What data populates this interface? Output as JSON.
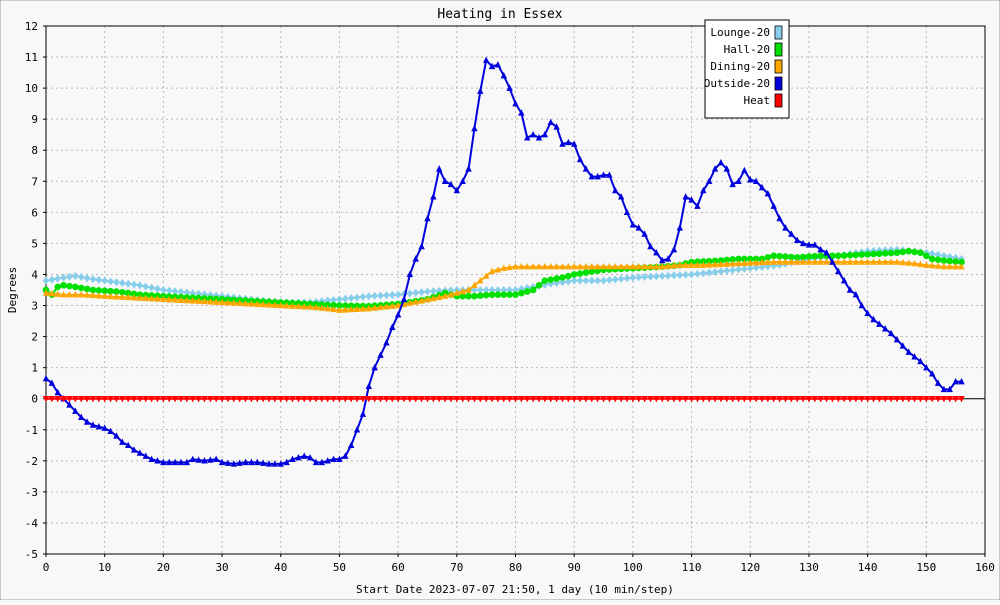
{
  "chart_data": {
    "type": "line",
    "title": "Heating in Essex",
    "xlabel": "Start Date 2023-07-07 21:50, 1 day (10 min/step)",
    "ylabel": "Degrees",
    "xlim": [
      0,
      160
    ],
    "ylim": [
      -5,
      12
    ],
    "xticks": [
      0,
      10,
      20,
      30,
      40,
      50,
      60,
      70,
      80,
      90,
      100,
      110,
      120,
      130,
      140,
      150,
      160
    ],
    "yticks": [
      -5,
      -4,
      -3,
      -2,
      -1,
      0,
      1,
      2,
      3,
      4,
      5,
      6,
      7,
      8,
      9,
      10,
      11,
      12
    ],
    "grid": true,
    "legend_position": "top-right",
    "series": [
      {
        "name": "Lounge-20",
        "color": "#87ceeb",
        "marker": "diamond",
        "points": [
          [
            0,
            3.8
          ],
          [
            3,
            3.9
          ],
          [
            5,
            3.95
          ],
          [
            8,
            3.85
          ],
          [
            12,
            3.75
          ],
          [
            16,
            3.65
          ],
          [
            20,
            3.5
          ],
          [
            25,
            3.4
          ],
          [
            30,
            3.3
          ],
          [
            35,
            3.2
          ],
          [
            40,
            3.1
          ],
          [
            45,
            3.1
          ],
          [
            50,
            3.2
          ],
          [
            55,
            3.3
          ],
          [
            60,
            3.35
          ],
          [
            65,
            3.45
          ],
          [
            70,
            3.5
          ],
          [
            75,
            3.5
          ],
          [
            80,
            3.5
          ],
          [
            83,
            3.6
          ],
          [
            86,
            3.7
          ],
          [
            90,
            3.8
          ],
          [
            95,
            3.8
          ],
          [
            100,
            3.9
          ],
          [
            105,
            3.95
          ],
          [
            110,
            4.0
          ],
          [
            115,
            4.1
          ],
          [
            120,
            4.2
          ],
          [
            125,
            4.3
          ],
          [
            130,
            4.5
          ],
          [
            135,
            4.6
          ],
          [
            140,
            4.75
          ],
          [
            145,
            4.8
          ],
          [
            150,
            4.7
          ],
          [
            153,
            4.6
          ],
          [
            156,
            4.5
          ]
        ]
      },
      {
        "name": "Hall-20",
        "color": "#00e000",
        "marker": "circle",
        "points": [
          [
            0,
            3.5
          ],
          [
            1,
            3.35
          ],
          [
            2,
            3.6
          ],
          [
            3,
            3.65
          ],
          [
            5,
            3.6
          ],
          [
            8,
            3.5
          ],
          [
            12,
            3.45
          ],
          [
            16,
            3.35
          ],
          [
            20,
            3.3
          ],
          [
            25,
            3.25
          ],
          [
            30,
            3.2
          ],
          [
            35,
            3.15
          ],
          [
            40,
            3.1
          ],
          [
            45,
            3.05
          ],
          [
            50,
            3.0
          ],
          [
            55,
            2.98
          ],
          [
            60,
            3.05
          ],
          [
            65,
            3.2
          ],
          [
            68,
            3.4
          ],
          [
            70,
            3.3
          ],
          [
            73,
            3.3
          ],
          [
            76,
            3.35
          ],
          [
            80,
            3.35
          ],
          [
            83,
            3.5
          ],
          [
            85,
            3.8
          ],
          [
            88,
            3.9
          ],
          [
            90,
            4.0
          ],
          [
            95,
            4.15
          ],
          [
            100,
            4.2
          ],
          [
            105,
            4.25
          ],
          [
            108,
            4.3
          ],
          [
            110,
            4.4
          ],
          [
            115,
            4.45
          ],
          [
            118,
            4.5
          ],
          [
            122,
            4.5
          ],
          [
            124,
            4.6
          ],
          [
            128,
            4.55
          ],
          [
            132,
            4.6
          ],
          [
            135,
            4.6
          ],
          [
            140,
            4.65
          ],
          [
            145,
            4.7
          ],
          [
            147,
            4.75
          ],
          [
            149,
            4.7
          ],
          [
            151,
            4.5
          ],
          [
            153,
            4.45
          ],
          [
            156,
            4.4
          ]
        ]
      },
      {
        "name": "Dining-20",
        "color": "#ffa500",
        "marker": "triangle",
        "points": [
          [
            0,
            3.4
          ],
          [
            3,
            3.35
          ],
          [
            6,
            3.35
          ],
          [
            10,
            3.3
          ],
          [
            15,
            3.25
          ],
          [
            20,
            3.2
          ],
          [
            25,
            3.15
          ],
          [
            30,
            3.1
          ],
          [
            35,
            3.05
          ],
          [
            40,
            3.0
          ],
          [
            45,
            2.95
          ],
          [
            48,
            2.9
          ],
          [
            50,
            2.85
          ],
          [
            55,
            2.9
          ],
          [
            60,
            3.0
          ],
          [
            64,
            3.15
          ],
          [
            68,
            3.3
          ],
          [
            72,
            3.5
          ],
          [
            74,
            3.8
          ],
          [
            76,
            4.1
          ],
          [
            78,
            4.2
          ],
          [
            80,
            4.25
          ],
          [
            85,
            4.25
          ],
          [
            90,
            4.25
          ],
          [
            95,
            4.25
          ],
          [
            100,
            4.25
          ],
          [
            105,
            4.25
          ],
          [
            108,
            4.3
          ],
          [
            112,
            4.3
          ],
          [
            118,
            4.35
          ],
          [
            124,
            4.4
          ],
          [
            130,
            4.4
          ],
          [
            135,
            4.4
          ],
          [
            140,
            4.4
          ],
          [
            145,
            4.4
          ],
          [
            148,
            4.35
          ],
          [
            150,
            4.3
          ],
          [
            153,
            4.25
          ],
          [
            156,
            4.25
          ]
        ]
      },
      {
        "name": "Outside-20",
        "color": "#0000dd",
        "marker": "triangle",
        "points": [
          [
            0,
            0.65
          ],
          [
            1,
            0.5
          ],
          [
            2,
            0.2
          ],
          [
            3,
            0.0
          ],
          [
            4,
            -0.2
          ],
          [
            5,
            -0.4
          ],
          [
            6,
            -0.6
          ],
          [
            7,
            -0.75
          ],
          [
            8,
            -0.85
          ],
          [
            9,
            -0.9
          ],
          [
            10,
            -0.95
          ],
          [
            11,
            -1.05
          ],
          [
            12,
            -1.2
          ],
          [
            13,
            -1.4
          ],
          [
            14,
            -1.5
          ],
          [
            15,
            -1.65
          ],
          [
            16,
            -1.75
          ],
          [
            17,
            -1.85
          ],
          [
            18,
            -1.95
          ],
          [
            19,
            -2.0
          ],
          [
            20,
            -2.05
          ],
          [
            22,
            -2.05
          ],
          [
            24,
            -2.05
          ],
          [
            25,
            -1.95
          ],
          [
            27,
            -2.0
          ],
          [
            29,
            -1.95
          ],
          [
            30,
            -2.05
          ],
          [
            32,
            -2.1
          ],
          [
            34,
            -2.05
          ],
          [
            36,
            -2.05
          ],
          [
            38,
            -2.1
          ],
          [
            40,
            -2.1
          ],
          [
            41,
            -2.05
          ],
          [
            42,
            -1.95
          ],
          [
            43,
            -1.9
          ],
          [
            44,
            -1.85
          ],
          [
            45,
            -1.9
          ],
          [
            46,
            -2.05
          ],
          [
            47,
            -2.05
          ],
          [
            48,
            -2.0
          ],
          [
            49,
            -1.95
          ],
          [
            50,
            -1.95
          ],
          [
            51,
            -1.85
          ],
          [
            52,
            -1.5
          ],
          [
            53,
            -1.0
          ],
          [
            54,
            -0.5
          ],
          [
            55,
            0.4
          ],
          [
            56,
            1.0
          ],
          [
            57,
            1.4
          ],
          [
            58,
            1.8
          ],
          [
            59,
            2.3
          ],
          [
            60,
            2.7
          ],
          [
            61,
            3.2
          ],
          [
            62,
            4.0
          ],
          [
            63,
            4.5
          ],
          [
            64,
            4.9
          ],
          [
            65,
            5.8
          ],
          [
            66,
            6.5
          ],
          [
            67,
            7.4
          ],
          [
            68,
            7.0
          ],
          [
            69,
            6.9
          ],
          [
            70,
            6.7
          ],
          [
            71,
            7.0
          ],
          [
            72,
            7.4
          ],
          [
            73,
            8.7
          ],
          [
            74,
            9.9
          ],
          [
            75,
            10.9
          ],
          [
            76,
            10.7
          ],
          [
            77,
            10.75
          ],
          [
            78,
            10.4
          ],
          [
            79,
            10.0
          ],
          [
            80,
            9.5
          ],
          [
            81,
            9.2
          ],
          [
            82,
            8.4
          ],
          [
            83,
            8.5
          ],
          [
            84,
            8.4
          ],
          [
            85,
            8.5
          ],
          [
            86,
            8.9
          ],
          [
            87,
            8.75
          ],
          [
            88,
            8.2
          ],
          [
            89,
            8.25
          ],
          [
            90,
            8.2
          ],
          [
            91,
            7.7
          ],
          [
            92,
            7.4
          ],
          [
            93,
            7.15
          ],
          [
            94,
            7.15
          ],
          [
            95,
            7.2
          ],
          [
            96,
            7.2
          ],
          [
            97,
            6.7
          ],
          [
            98,
            6.5
          ],
          [
            99,
            6.0
          ],
          [
            100,
            5.6
          ],
          [
            101,
            5.5
          ],
          [
            102,
            5.3
          ],
          [
            103,
            4.9
          ],
          [
            104,
            4.7
          ],
          [
            105,
            4.45
          ],
          [
            106,
            4.5
          ],
          [
            107,
            4.8
          ],
          [
            108,
            5.5
          ],
          [
            109,
            6.5
          ],
          [
            110,
            6.4
          ],
          [
            111,
            6.2
          ],
          [
            112,
            6.7
          ],
          [
            113,
            7.0
          ],
          [
            114,
            7.4
          ],
          [
            115,
            7.6
          ],
          [
            116,
            7.4
          ],
          [
            117,
            6.9
          ],
          [
            118,
            7.0
          ],
          [
            119,
            7.35
          ],
          [
            120,
            7.05
          ],
          [
            121,
            7.0
          ],
          [
            122,
            6.8
          ],
          [
            123,
            6.6
          ],
          [
            124,
            6.2
          ],
          [
            125,
            5.8
          ],
          [
            126,
            5.5
          ],
          [
            127,
            5.3
          ],
          [
            128,
            5.1
          ],
          [
            129,
            5.0
          ],
          [
            130,
            4.95
          ],
          [
            131,
            4.95
          ],
          [
            132,
            4.8
          ],
          [
            133,
            4.7
          ],
          [
            134,
            4.4
          ],
          [
            135,
            4.1
          ],
          [
            136,
            3.8
          ],
          [
            137,
            3.5
          ],
          [
            138,
            3.35
          ],
          [
            139,
            3.0
          ],
          [
            140,
            2.75
          ],
          [
            141,
            2.55
          ],
          [
            142,
            2.4
          ],
          [
            143,
            2.25
          ],
          [
            144,
            2.1
          ],
          [
            145,
            1.9
          ],
          [
            146,
            1.7
          ],
          [
            147,
            1.5
          ],
          [
            148,
            1.35
          ],
          [
            149,
            1.2
          ],
          [
            150,
            1.0
          ],
          [
            151,
            0.8
          ],
          [
            152,
            0.5
          ],
          [
            153,
            0.3
          ],
          [
            154,
            0.3
          ],
          [
            155,
            0.55
          ],
          [
            156,
            0.55
          ]
        ]
      },
      {
        "name": "Heat",
        "color": "#ff0000",
        "marker": "triangle-down",
        "points": [
          [
            0,
            0
          ],
          [
            156,
            0
          ]
        ]
      }
    ]
  }
}
